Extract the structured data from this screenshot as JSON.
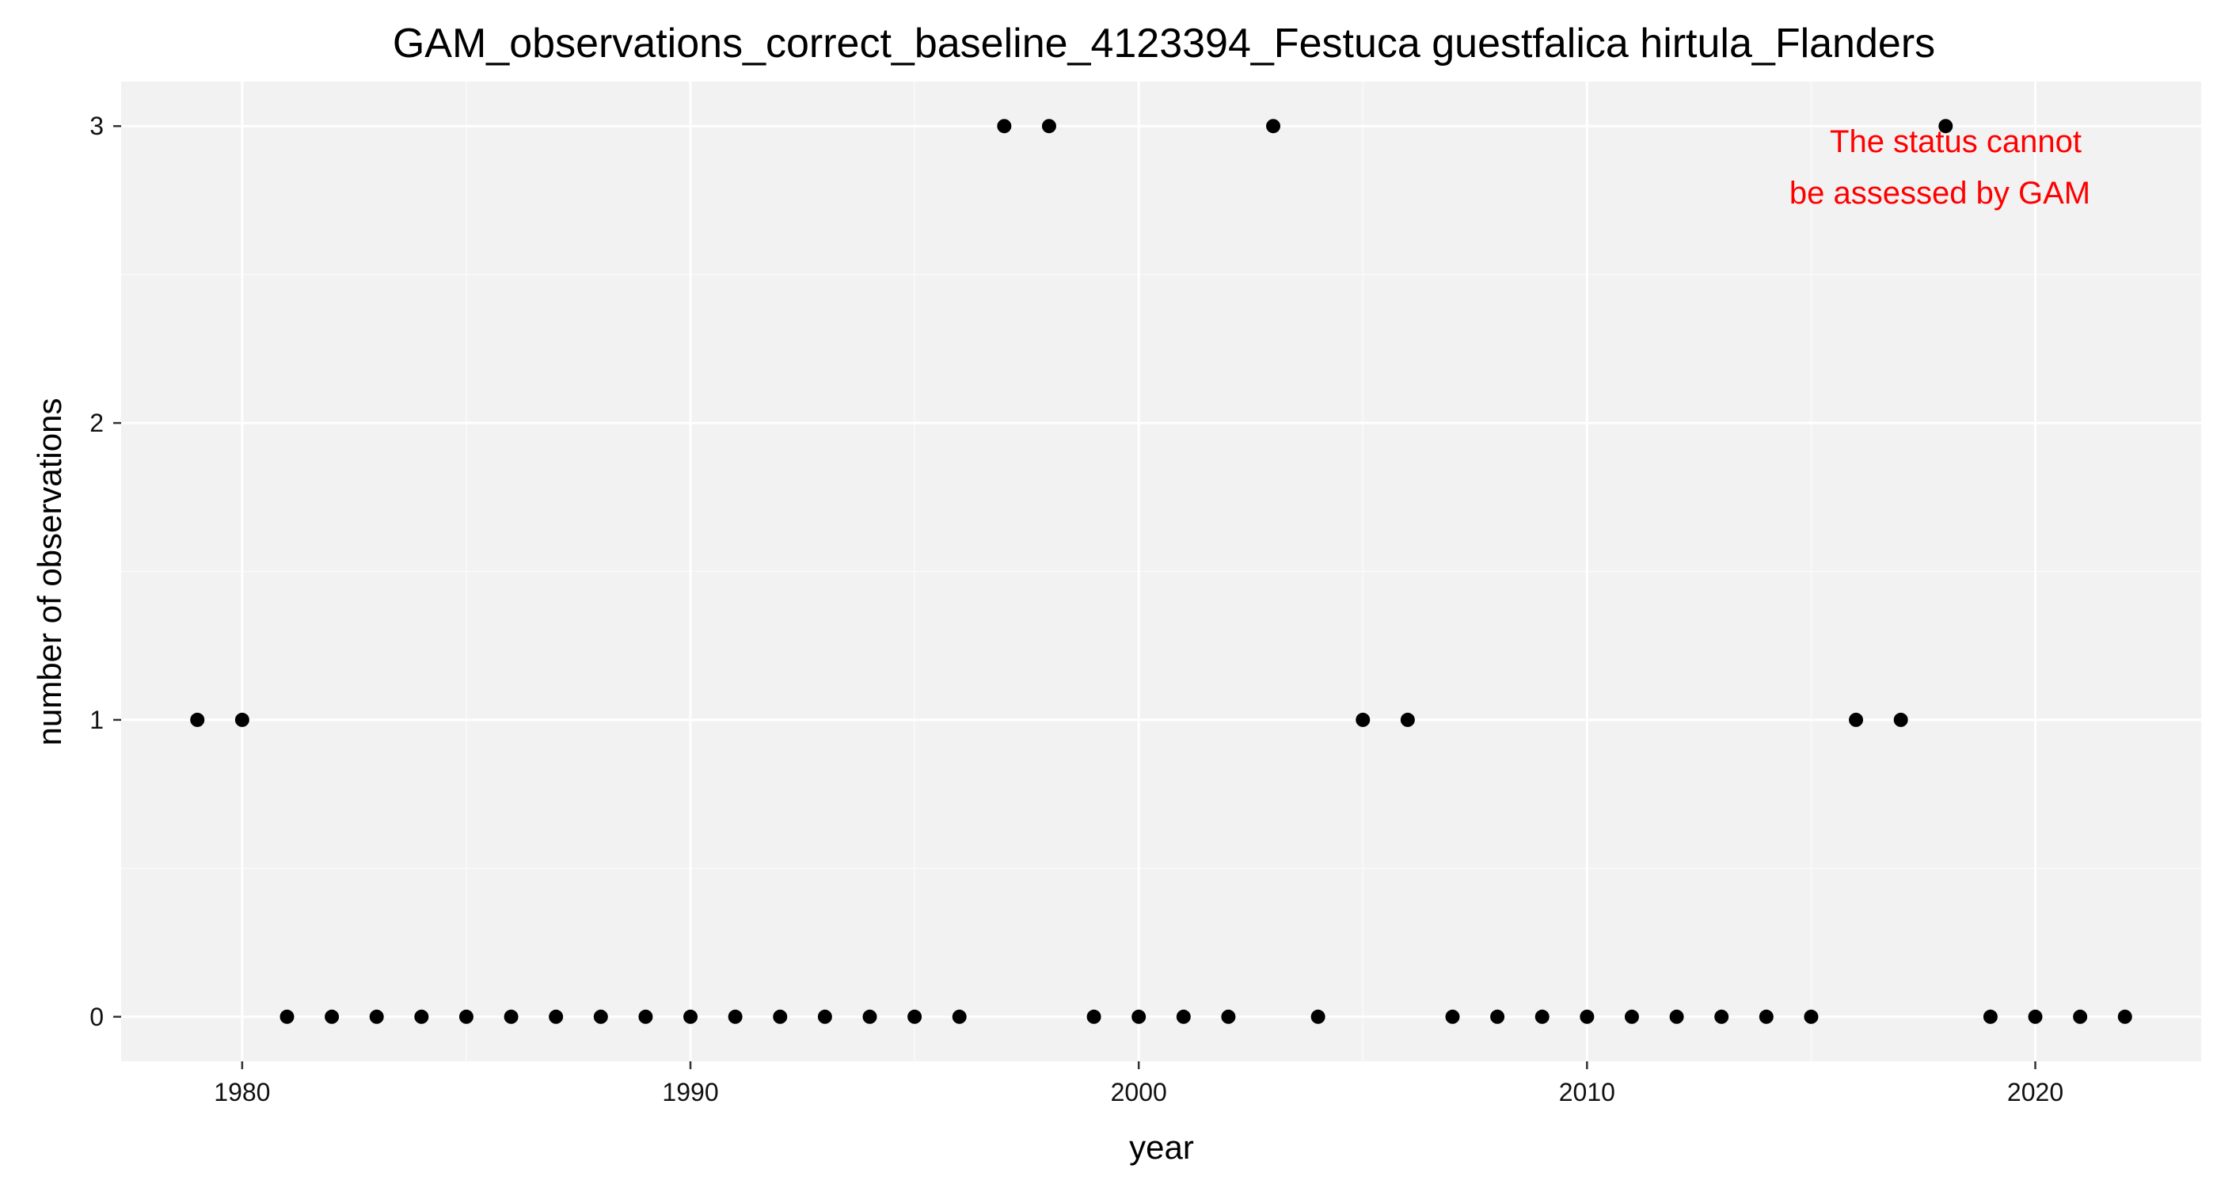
{
  "chart_data": {
    "type": "scatter",
    "title": "GAM_observations_correct_baseline_4123394_Festuca guestfalica hirtula_Flanders",
    "xlabel": "year",
    "ylabel": "number of observations",
    "xlim": [
      1977.3,
      2023.7
    ],
    "ylim": [
      -0.15,
      3.15
    ],
    "x_ticks": [
      1980,
      1990,
      2000,
      2010,
      2020
    ],
    "y_ticks": [
      0,
      1,
      2,
      3
    ],
    "x_tick_labels": [
      "1980",
      "1990",
      "2000",
      "2010",
      "2020"
    ],
    "y_tick_labels": [
      "0",
      "1",
      "2",
      "3"
    ],
    "grid": true,
    "legend": "none",
    "point_color": "#000000",
    "panel_background": "#f2f2f2",
    "annotation": {
      "lines": [
        "The status cannot",
        "be assessed by GAM"
      ],
      "color": "#ff0000",
      "placement": "top-right"
    },
    "x": [
      1979,
      1980,
      1981,
      1982,
      1983,
      1984,
      1985,
      1986,
      1987,
      1988,
      1989,
      1990,
      1991,
      1992,
      1993,
      1994,
      1995,
      1996,
      1997,
      1998,
      1999,
      2000,
      2001,
      2002,
      2003,
      2004,
      2005,
      2006,
      2007,
      2008,
      2009,
      2010,
      2011,
      2012,
      2013,
      2014,
      2015,
      2016,
      2017,
      2018,
      2019,
      2020,
      2021,
      2022
    ],
    "y": [
      1,
      1,
      0,
      0,
      0,
      0,
      0,
      0,
      0,
      0,
      0,
      0,
      0,
      0,
      0,
      0,
      0,
      0,
      3,
      3,
      0,
      0,
      0,
      0,
      3,
      0,
      1,
      1,
      0,
      0,
      0,
      0,
      0,
      0,
      0,
      0,
      0,
      1,
      1,
      3,
      0,
      0,
      0,
      0
    ]
  }
}
